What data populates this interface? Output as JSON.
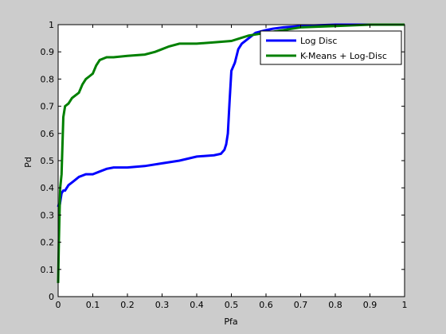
{
  "chart_data": {
    "type": "line",
    "title": "",
    "xlabel": "Pfa",
    "ylabel": "Pd",
    "xlim": [
      0,
      1
    ],
    "ylim": [
      0,
      1
    ],
    "xticks": [
      "0",
      "0.1",
      "0.2",
      "0.3",
      "0.4",
      "0.5",
      "0.6",
      "0.7",
      "0.8",
      "0.9",
      "1"
    ],
    "yticks": [
      "0",
      "0.1",
      "0.2",
      "0.3",
      "0.4",
      "0.5",
      "0.6",
      "0.7",
      "0.8",
      "0.9",
      "1"
    ],
    "grid": false,
    "legend_position": "top-right",
    "series": [
      {
        "name": "Log Disc",
        "color": "#0000ff",
        "x": [
          0,
          0.002,
          0.005,
          0.01,
          0.015,
          0.02,
          0.03,
          0.04,
          0.05,
          0.06,
          0.08,
          0.1,
          0.12,
          0.14,
          0.16,
          0.2,
          0.25,
          0.3,
          0.35,
          0.4,
          0.45,
          0.47,
          0.48,
          0.485,
          0.49,
          0.495,
          0.5,
          0.51,
          0.52,
          0.53,
          0.55,
          0.57,
          0.6,
          0.62,
          0.65,
          0.7,
          0.8,
          0.9,
          0.96
        ],
        "y": [
          0.33,
          0.34,
          0.34,
          0.38,
          0.39,
          0.39,
          0.41,
          0.42,
          0.43,
          0.44,
          0.45,
          0.45,
          0.46,
          0.47,
          0.475,
          0.475,
          0.48,
          0.49,
          0.5,
          0.515,
          0.52,
          0.525,
          0.54,
          0.56,
          0.6,
          0.72,
          0.83,
          0.86,
          0.91,
          0.93,
          0.95,
          0.97,
          0.98,
          0.985,
          0.99,
          0.995,
          1.0,
          1.0,
          1.0
        ]
      },
      {
        "name": "K-Means + Log-Disc",
        "color": "#008000",
        "x": [
          0,
          0.002,
          0.004,
          0.006,
          0.01,
          0.015,
          0.02,
          0.03,
          0.04,
          0.06,
          0.07,
          0.08,
          0.09,
          0.1,
          0.11,
          0.12,
          0.14,
          0.16,
          0.2,
          0.25,
          0.28,
          0.3,
          0.32,
          0.35,
          0.4,
          0.45,
          0.5,
          0.55,
          0.6,
          0.65,
          0.7,
          0.8,
          0.9,
          1.0
        ],
        "y": [
          0.05,
          0.2,
          0.3,
          0.4,
          0.45,
          0.66,
          0.7,
          0.71,
          0.73,
          0.75,
          0.78,
          0.8,
          0.81,
          0.82,
          0.85,
          0.87,
          0.88,
          0.88,
          0.885,
          0.89,
          0.9,
          0.91,
          0.92,
          0.93,
          0.93,
          0.935,
          0.94,
          0.96,
          0.97,
          0.98,
          0.99,
          0.995,
          1.0,
          1.0
        ]
      }
    ]
  }
}
